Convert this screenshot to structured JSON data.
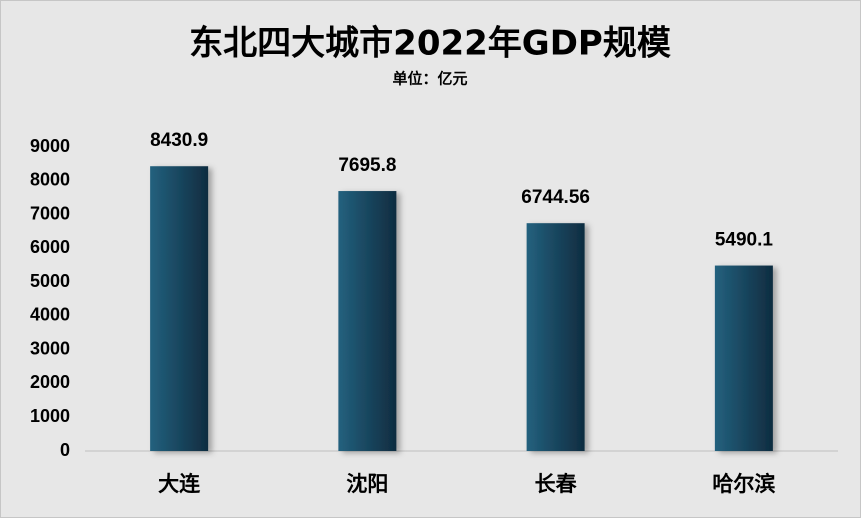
{
  "chart_data": {
    "type": "bar",
    "title": "东北四大城市2022年GDP规模",
    "subtitle": "单位：亿元",
    "categories": [
      "大连",
      "沈阳",
      "长春",
      "哈尔滨"
    ],
    "values": [
      8430.9,
      7695.8,
      6744.56,
      5490.1
    ],
    "color": "#23617e",
    "ylim": [
      0,
      9000
    ],
    "yticks": [
      0,
      1000,
      2000,
      3000,
      4000,
      5000,
      6000,
      7000,
      8000,
      9000
    ],
    "grid": false,
    "data_labels": true
  }
}
